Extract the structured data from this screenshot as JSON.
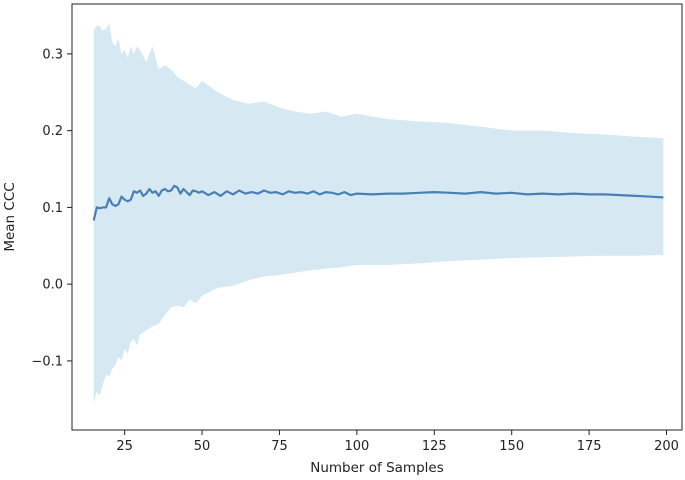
{
  "chart_data": {
    "type": "area",
    "title": "",
    "xlabel": "Number of Samples",
    "ylabel": "Mean CCC",
    "xlim": [
      8,
      205
    ],
    "ylim": [
      -0.19,
      0.365
    ],
    "xticks": [
      25,
      50,
      75,
      100,
      125,
      150,
      175,
      200
    ],
    "yticks": [
      -0.1,
      0.0,
      0.1,
      0.2,
      0.3
    ],
    "ytick_labels": [
      "−0.1",
      "0.0",
      "0.1",
      "0.2",
      "0.3"
    ],
    "grid": false,
    "legend": "none",
    "colors": {
      "mean_line": "#4a7fb5",
      "band": "#d6e9f3"
    },
    "series": [
      {
        "role": "mean",
        "x": [
          15,
          16,
          17,
          18,
          19,
          20,
          21,
          22,
          23,
          24,
          25,
          26,
          27,
          28,
          29,
          30,
          31,
          32,
          33,
          34,
          35,
          36,
          37,
          38,
          39,
          40,
          41,
          42,
          43,
          44,
          45,
          46,
          47,
          48,
          49,
          50,
          52,
          54,
          56,
          58,
          60,
          62,
          64,
          66,
          68,
          70,
          72,
          74,
          76,
          78,
          80,
          82,
          84,
          86,
          88,
          90,
          92,
          94,
          96,
          98,
          100,
          105,
          110,
          115,
          120,
          125,
          130,
          135,
          140,
          145,
          150,
          155,
          160,
          165,
          170,
          175,
          180,
          185,
          190,
          195,
          199
        ],
        "y": [
          0.083,
          0.1,
          0.099,
          0.1,
          0.1,
          0.112,
          0.104,
          0.102,
          0.104,
          0.114,
          0.11,
          0.108,
          0.11,
          0.121,
          0.119,
          0.122,
          0.115,
          0.118,
          0.124,
          0.119,
          0.121,
          0.115,
          0.122,
          0.124,
          0.121,
          0.122,
          0.128,
          0.126,
          0.118,
          0.124,
          0.12,
          0.116,
          0.122,
          0.121,
          0.119,
          0.121,
          0.116,
          0.12,
          0.115,
          0.121,
          0.117,
          0.122,
          0.118,
          0.12,
          0.118,
          0.122,
          0.119,
          0.12,
          0.117,
          0.121,
          0.119,
          0.12,
          0.118,
          0.121,
          0.117,
          0.12,
          0.119,
          0.117,
          0.12,
          0.116,
          0.118,
          0.117,
          0.118,
          0.118,
          0.119,
          0.12,
          0.119,
          0.118,
          0.12,
          0.118,
          0.119,
          0.117,
          0.118,
          0.117,
          0.118,
          0.117,
          0.117,
          0.116,
          0.115,
          0.114,
          0.113
        ]
      },
      {
        "role": "upper",
        "x": [
          15,
          16,
          17,
          18,
          19,
          20,
          21,
          22,
          23,
          24,
          25,
          26,
          27,
          28,
          29,
          30,
          32,
          34,
          36,
          38,
          40,
          42,
          44,
          46,
          48,
          50,
          55,
          60,
          65,
          70,
          75,
          80,
          85,
          90,
          95,
          100,
          110,
          120,
          130,
          140,
          150,
          160,
          170,
          180,
          190,
          199
        ],
        "y": [
          0.33,
          0.337,
          0.336,
          0.33,
          0.333,
          0.34,
          0.315,
          0.31,
          0.32,
          0.3,
          0.305,
          0.295,
          0.31,
          0.3,
          0.31,
          0.305,
          0.29,
          0.31,
          0.28,
          0.285,
          0.28,
          0.27,
          0.265,
          0.26,
          0.255,
          0.265,
          0.25,
          0.24,
          0.235,
          0.238,
          0.23,
          0.225,
          0.222,
          0.225,
          0.218,
          0.222,
          0.215,
          0.212,
          0.21,
          0.205,
          0.2,
          0.2,
          0.197,
          0.195,
          0.192,
          0.19
        ]
      },
      {
        "role": "lower",
        "x": [
          15,
          16,
          17,
          18,
          19,
          20,
          21,
          22,
          23,
          24,
          25,
          26,
          27,
          28,
          29,
          30,
          32,
          34,
          36,
          38,
          40,
          42,
          44,
          46,
          48,
          50,
          55,
          60,
          65,
          70,
          75,
          80,
          85,
          90,
          95,
          100,
          110,
          120,
          130,
          140,
          150,
          160,
          170,
          180,
          190,
          199
        ],
        "y": [
          -0.155,
          -0.14,
          -0.145,
          -0.13,
          -0.118,
          -0.12,
          -0.11,
          -0.105,
          -0.095,
          -0.1,
          -0.085,
          -0.09,
          -0.075,
          -0.072,
          -0.08,
          -0.065,
          -0.06,
          -0.055,
          -0.052,
          -0.04,
          -0.03,
          -0.028,
          -0.03,
          -0.02,
          -0.025,
          -0.015,
          -0.005,
          -0.002,
          0.005,
          0.01,
          0.012,
          0.015,
          0.018,
          0.02,
          0.022,
          0.025,
          0.025,
          0.027,
          0.03,
          0.032,
          0.034,
          0.035,
          0.036,
          0.037,
          0.037,
          0.038
        ]
      }
    ]
  }
}
